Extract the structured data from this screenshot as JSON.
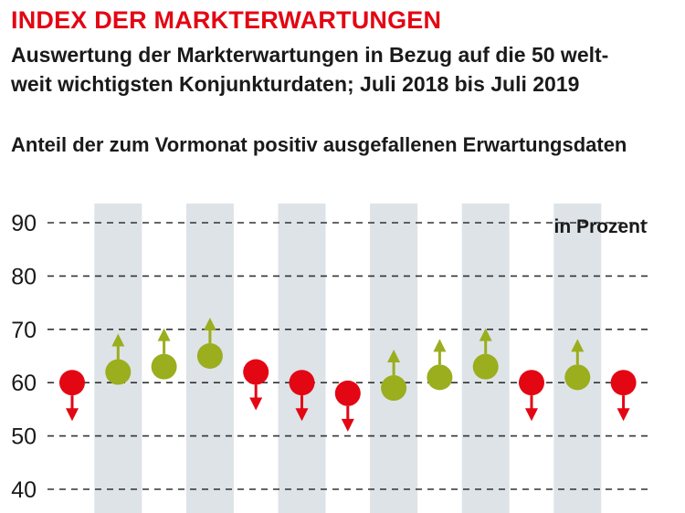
{
  "header": {
    "kicker": "INDEX DER MARKTERWARTUNGEN",
    "subtitle_line1": "Auswertung der Markterwartungen in Bezug auf die 50 welt-",
    "subtitle_line2": "weit wichtigsten Konjunkturdaten; Juli 2018 bis Juli 2019",
    "description": "Anteil der zum Vormonat positiv ausgefallenen Erwartungsdaten"
  },
  "colors": {
    "up": "#9aae1e",
    "down": "#e30613",
    "band": "#dde3e7",
    "grid": "#333333",
    "text": "#1a1a1a"
  },
  "chart_data": {
    "type": "scatter",
    "title": "Anteil der zum Vormonat positiv ausgefallenen Erwartungsdaten",
    "ylabel": "in Prozent",
    "xlabel": "",
    "ylim": [
      40,
      90
    ],
    "yticks": [
      "90",
      "80",
      "70",
      "60",
      "50",
      "40"
    ],
    "yticks_values": [
      90,
      80,
      70,
      60,
      50,
      40
    ],
    "grid": true,
    "unit_label": "in Prozent",
    "x_range": "Juli 2018 bis Juli 2019",
    "values": [
      60,
      62,
      63,
      65,
      62,
      60,
      58,
      59,
      61,
      63,
      60,
      61,
      60
    ],
    "direction": [
      "down",
      "up",
      "up",
      "up",
      "down",
      "down",
      "down",
      "up",
      "up",
      "up",
      "down",
      "up",
      "down"
    ],
    "shaded_columns": [
      1,
      3,
      5,
      7,
      9,
      11
    ]
  }
}
